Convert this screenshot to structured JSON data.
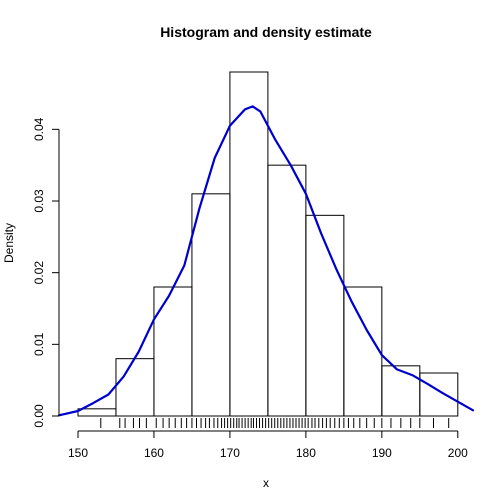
{
  "chart_data": {
    "type": "bar",
    "title": "Histogram and density estimate",
    "xlabel": "x",
    "ylabel": "Density",
    "xlim": [
      147.5,
      202
    ],
    "ylim": [
      0,
      0.048
    ],
    "x_ticks": [
      150,
      160,
      170,
      180,
      190,
      200
    ],
    "y_ticks": [
      0.0,
      0.01,
      0.02,
      0.03,
      0.04
    ],
    "x_tick_labels": [
      "150",
      "160",
      "170",
      "180",
      "190",
      "200"
    ],
    "y_tick_labels": [
      "0.00",
      "0.01",
      "0.02",
      "0.03",
      "0.04"
    ],
    "bins": [
      {
        "start": 150,
        "end": 155,
        "density": 0.001
      },
      {
        "start": 155,
        "end": 160,
        "density": 0.008
      },
      {
        "start": 160,
        "end": 165,
        "density": 0.018
      },
      {
        "start": 165,
        "end": 170,
        "density": 0.031
      },
      {
        "start": 170,
        "end": 175,
        "density": 0.048
      },
      {
        "start": 175,
        "end": 180,
        "density": 0.035
      },
      {
        "start": 180,
        "end": 185,
        "density": 0.028
      },
      {
        "start": 185,
        "end": 190,
        "density": 0.018
      },
      {
        "start": 190,
        "end": 195,
        "density": 0.007
      },
      {
        "start": 195,
        "end": 200,
        "density": 0.006
      }
    ],
    "density_curve": {
      "color": "#0000cc",
      "x": [
        147.5,
        150,
        152,
        154,
        156,
        158,
        160,
        162,
        164,
        166,
        168,
        170,
        172,
        173,
        174,
        176,
        178,
        180,
        182,
        184,
        186,
        188,
        190,
        192,
        194,
        196,
        198,
        200,
        202
      ],
      "y": [
        0.0001,
        0.0007,
        0.0018,
        0.003,
        0.0055,
        0.009,
        0.0135,
        0.0168,
        0.021,
        0.029,
        0.036,
        0.0405,
        0.0428,
        0.0432,
        0.0425,
        0.0385,
        0.035,
        0.031,
        0.0255,
        0.0205,
        0.016,
        0.012,
        0.0085,
        0.0065,
        0.0057,
        0.0045,
        0.0032,
        0.002,
        0.0008
      ]
    },
    "rug": [
      153.0,
      155.5,
      156.2,
      157.3,
      158.1,
      159.0,
      160.3,
      161.2,
      162.0,
      162.8,
      163.6,
      164.3,
      165.0,
      165.6,
      166.2,
      166.8,
      167.3,
      167.9,
      168.4,
      168.9,
      169.3,
      169.7,
      170.1,
      170.5,
      170.9,
      171.2,
      171.6,
      172.0,
      172.4,
      172.8,
      173.1,
      173.5,
      173.9,
      174.3,
      174.7,
      175.1,
      175.5,
      175.9,
      176.3,
      176.7,
      177.1,
      177.5,
      177.9,
      178.3,
      178.7,
      179.1,
      179.5,
      179.9,
      180.3,
      180.8,
      181.2,
      181.7,
      182.2,
      182.7,
      183.2,
      183.8,
      184.4,
      185.0,
      185.6,
      186.3,
      187.1,
      188.0,
      189.0,
      190.0,
      191.2,
      192.5,
      193.8,
      195.0,
      196.8,
      198.8
    ],
    "grid": false,
    "legend": "none"
  }
}
